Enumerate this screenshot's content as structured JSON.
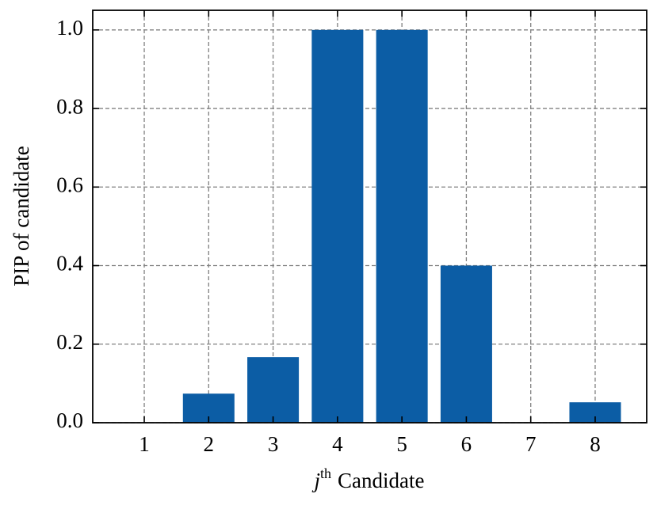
{
  "chart_data": {
    "type": "bar",
    "xlabel": {
      "variable": "j",
      "superscript": "th",
      "text": "Candidate"
    },
    "ylabel": "PIP of candidate",
    "x": [
      1,
      2,
      3,
      4,
      5,
      6,
      7,
      8
    ],
    "values": [
      0,
      0.074,
      0.167,
      1.0,
      1.0,
      0.4,
      0,
      0.052
    ],
    "color": "#0C5DA5",
    "xlim": [
      0.2,
      8.8
    ],
    "xticks": [
      1,
      2,
      3,
      4,
      5,
      6,
      7,
      8
    ],
    "ylim": [
      0,
      1.05
    ],
    "yticks": [
      {
        "value": 0,
        "label": "0.0"
      },
      0.2,
      0.4,
      0.6,
      0.8,
      {
        "value": 1,
        "label": "1.0"
      }
    ],
    "grid": true
  }
}
